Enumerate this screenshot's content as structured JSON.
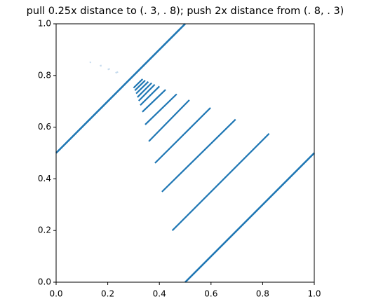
{
  "chart_data": {
    "type": "line",
    "title": "pull 0.25x distance to (. 3, . 8); push 2x distance from (. 8, . 3)",
    "xlim": [
      0,
      1
    ],
    "ylim": [
      0,
      1
    ],
    "xticks": [
      {
        "value": 0,
        "label": "0.0"
      },
      0.2,
      0.4,
      0.6,
      0.8,
      {
        "value": 1,
        "label": "1.0"
      }
    ],
    "yticks": [
      {
        "value": 0,
        "label": "0.0"
      },
      0.2,
      0.4,
      0.6,
      0.8,
      {
        "value": 1,
        "label": "1.0"
      }
    ],
    "series": [
      {
        "color": "#1f77b4",
        "x": [
          0,
          0.5
        ],
        "values": [
          0.5,
          1
        ]
      },
      {
        "color": "#1f77b4",
        "x": [
          0.5,
          1
        ],
        "values": [
          0,
          0.5
        ]
      },
      {
        "color": "#1f77b4",
        "x": [
          0.45,
          0.825
        ],
        "values": [
          0.2,
          0.575
        ]
      },
      {
        "color": "#1f77b4",
        "x": [
          0.41,
          0.695
        ],
        "values": [
          0.35,
          0.63
        ]
      },
      {
        "color": "#1f77b4",
        "x": [
          0.383,
          0.598
        ],
        "values": [
          0.461,
          0.675
        ]
      },
      {
        "color": "#1f77b4",
        "x": [
          0.359,
          0.516
        ],
        "values": [
          0.545,
          0.705
        ]
      },
      {
        "color": "#1f77b4",
        "x": [
          0.345,
          0.467
        ],
        "values": [
          0.61,
          0.728
        ]
      },
      {
        "color": "#1f77b4",
        "x": [
          0.334,
          0.424
        ],
        "values": [
          0.659,
          0.745
        ]
      },
      {
        "color": "#1f77b4",
        "x": [
          0.326,
          0.4
        ],
        "values": [
          0.685,
          0.758
        ]
      },
      {
        "color": "#1f77b4",
        "x": [
          0.32,
          0.382
        ],
        "values": [
          0.702,
          0.765
        ]
      },
      {
        "color": "#1f77b4",
        "x": [
          0.315,
          0.37
        ],
        "values": [
          0.716,
          0.771
        ]
      },
      {
        "color": "#1f77b4",
        "x": [
          0.31,
          0.357
        ],
        "values": [
          0.73,
          0.776
        ]
      },
      {
        "color": "#1f77b4",
        "x": [
          0.305,
          0.345
        ],
        "values": [
          0.742,
          0.781
        ]
      },
      {
        "color": "#1f77b4",
        "x": [
          0.3,
          0.335
        ],
        "values": [
          0.752,
          0.786
        ]
      },
      {
        "color": "#c6dbee",
        "x": [
          0.13,
          0.135
        ],
        "values": [
          0.85,
          0.852
        ]
      },
      {
        "color": "#c6dbee",
        "x": [
          0.17,
          0.176
        ],
        "values": [
          0.837,
          0.839
        ]
      },
      {
        "color": "#c6dbee",
        "x": [
          0.2,
          0.208
        ],
        "values": [
          0.823,
          0.826
        ]
      },
      {
        "color": "#c6dbee",
        "x": [
          0.23,
          0.24
        ],
        "values": [
          0.81,
          0.814
        ]
      }
    ]
  }
}
